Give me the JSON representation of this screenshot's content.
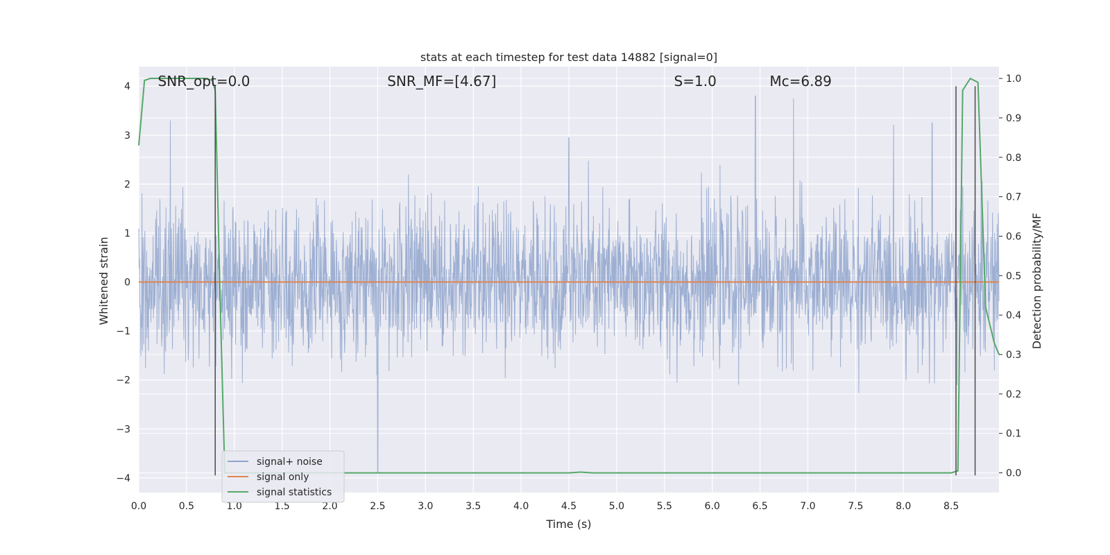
{
  "chart_data": {
    "type": "line",
    "title": "stats at each timestep for test data 14882 [signal=0]",
    "xlabel": "Time (s)",
    "ylabel": "Whitened strain",
    "ylabel_right": "Detection probability/MF",
    "xlim": [
      0.0,
      9.0
    ],
    "ylim": [
      -4.3,
      4.4
    ],
    "ylim_right": [
      -0.05,
      1.03
    ],
    "xticks": [
      0.0,
      0.5,
      1.0,
      1.5,
      2.0,
      2.5,
      3.0,
      3.5,
      4.0,
      4.5,
      5.0,
      5.5,
      6.0,
      6.5,
      7.0,
      7.5,
      8.0,
      8.5
    ],
    "xtick_labels": [
      "0.0",
      "0.5",
      "1.0",
      "1.5",
      "2.0",
      "2.5",
      "3.0",
      "3.5",
      "4.0",
      "4.5",
      "5.0",
      "5.5",
      "6.0",
      "6.5",
      "7.0",
      "7.5",
      "8.0",
      "8.5"
    ],
    "yticks": [
      -4,
      -3,
      -2,
      -1,
      0,
      1,
      2,
      3,
      4
    ],
    "ytick_labels": [
      "−4",
      "−3",
      "−2",
      "−1",
      "0",
      "1",
      "2",
      "3",
      "4"
    ],
    "yticks_right": [
      0.0,
      0.1,
      0.2,
      0.3,
      0.4,
      0.5,
      0.6,
      0.7,
      0.8,
      0.9,
      1.0
    ],
    "ytick_labels_right": [
      "0.0",
      "0.1",
      "0.2",
      "0.3",
      "0.4",
      "0.5",
      "0.6",
      "0.7",
      "0.8",
      "0.9",
      "1.0"
    ],
    "grid": true,
    "legend_position": "lower-left",
    "annotations": [
      {
        "text": "SNR_opt=0.0",
        "x": 0.2
      },
      {
        "text": "SNR_MF=[4.67]",
        "x": 2.6
      },
      {
        "text": "S=1.0",
        "x": 5.6
      },
      {
        "text": "Mc=6.89",
        "x": 6.6
      }
    ],
    "vertical_lines": [
      0.8,
      8.55,
      8.75
    ],
    "series": [
      {
        "name": "signal+ noise",
        "axis": "left",
        "color": "#8fa4cc",
        "kind": "noise",
        "std": 0.75,
        "x_range": [
          0.0,
          9.0
        ],
        "peaks": [
          {
            "x": 0.33,
            "y": 3.3
          },
          {
            "x": 2.5,
            "y": -3.9
          },
          {
            "x": 6.45,
            "y": 3.8
          },
          {
            "x": 6.85,
            "y": 3.75
          },
          {
            "x": 4.5,
            "y": 2.95
          },
          {
            "x": 8.3,
            "y": 3.25
          }
        ]
      },
      {
        "name": "signal only",
        "axis": "left",
        "color": "#dd8452",
        "x": [
          0.0,
          9.0
        ],
        "y": [
          0.0,
          0.0
        ]
      },
      {
        "name": "signal statistics",
        "axis": "right",
        "color": "#55a868",
        "x": [
          0.0,
          0.06,
          0.12,
          0.3,
          0.5,
          0.7,
          0.77,
          0.8,
          0.85,
          0.9,
          1.0,
          2.0,
          3.0,
          4.0,
          4.5,
          4.62,
          4.75,
          5.0,
          6.0,
          7.0,
          8.0,
          8.5,
          8.57,
          8.62,
          8.7,
          8.78,
          8.86,
          8.95,
          9.0
        ],
        "y": [
          0.83,
          0.995,
          1.0,
          1.0,
          1.0,
          1.0,
          0.995,
          0.97,
          0.45,
          0.0,
          0.0,
          0.0,
          0.0,
          0.0,
          0.0,
          0.002,
          0.0,
          0.0,
          0.0,
          0.0,
          0.0,
          0.0,
          0.005,
          0.97,
          1.0,
          0.99,
          0.42,
          0.33,
          0.3
        ]
      }
    ]
  }
}
